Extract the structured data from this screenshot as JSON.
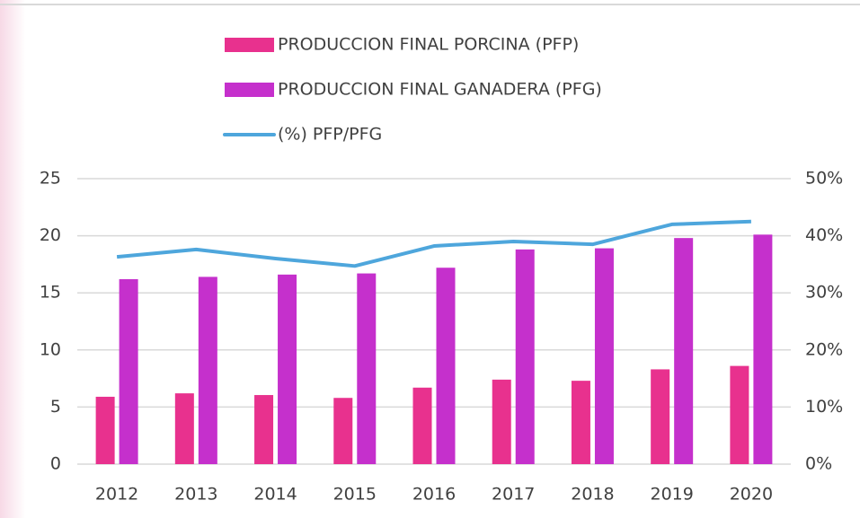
{
  "chart_data": {
    "type": "bar_line",
    "categories": [
      "2012",
      "2013",
      "2014",
      "2015",
      "2016",
      "2017",
      "2018",
      "2019",
      "2020"
    ],
    "series": [
      {
        "name": "PRODUCCION FINAL PORCINA (PFP)",
        "color": "#e8318e",
        "kind": "bar",
        "values": [
          5.9,
          6.2,
          6.05,
          5.8,
          6.7,
          7.4,
          7.3,
          8.3,
          8.6
        ]
      },
      {
        "name": "PRODUCCION FINAL GANADERA (PFG)",
        "color": "#c530cc",
        "kind": "bar",
        "values": [
          16.2,
          16.4,
          16.6,
          16.7,
          17.2,
          18.8,
          18.9,
          19.8,
          20.1
        ]
      },
      {
        "name": "(%)  PFP/PFG",
        "color": "#4ea6dc",
        "kind": "line",
        "axis": "y2",
        "values": [
          36.3,
          37.6,
          36,
          34.7,
          38.2,
          39,
          38.5,
          42,
          42.5
        ]
      }
    ],
    "ylim": [
      0,
      25
    ],
    "yticks": [
      0,
      5,
      10,
      15,
      20,
      25
    ],
    "y2lim": [
      0,
      50
    ],
    "y2ticks": [
      {
        "value": 0,
        "label": "0%"
      },
      {
        "value": 10,
        "label": "10%"
      },
      {
        "value": 20,
        "label": "20%"
      },
      {
        "value": 30,
        "label": "30%"
      },
      {
        "value": 40,
        "label": "40%"
      },
      {
        "value": 50,
        "label": "50%"
      }
    ],
    "grid": true
  }
}
